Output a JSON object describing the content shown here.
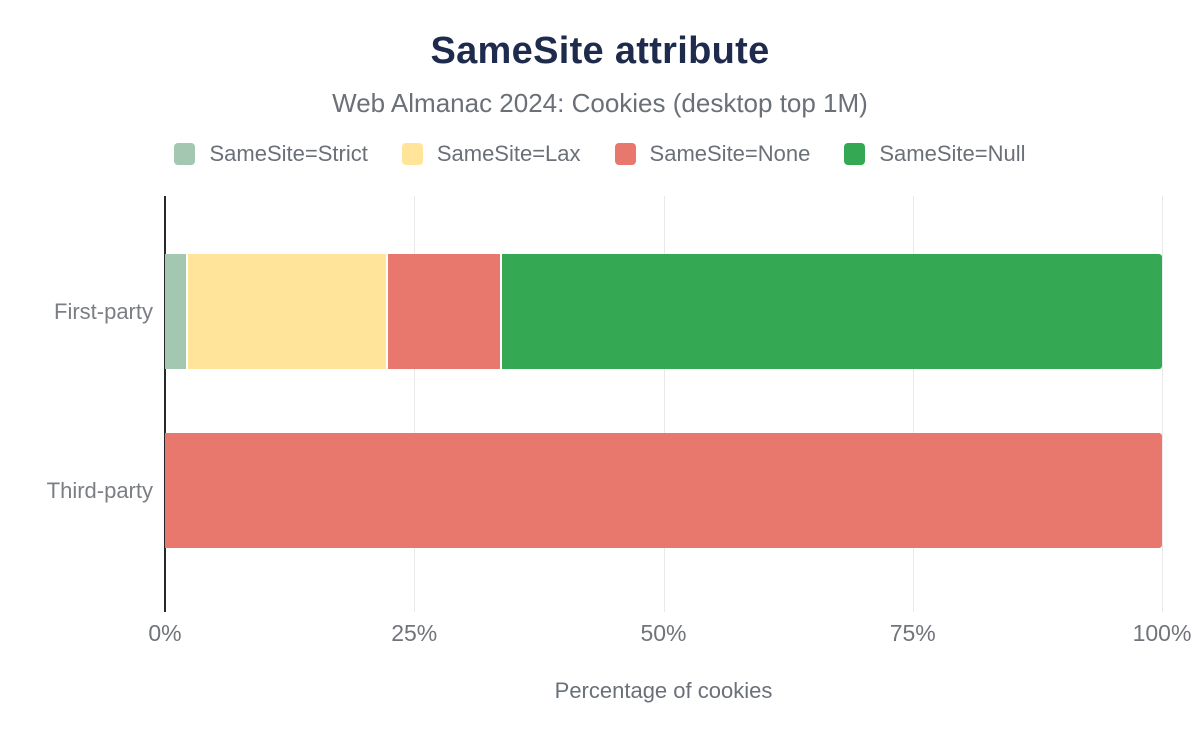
{
  "header": {
    "title": "SameSite attribute",
    "subtitle": "Web Almanac 2024: Cookies (desktop top 1M)"
  },
  "colors": {
    "title_text": "#1f2b4d",
    "muted_text": "#6b7078",
    "axis_line": "#26282b",
    "gridline": "#e9e9e9"
  },
  "chart_data": {
    "type": "bar",
    "orientation": "horizontal",
    "stacked": true,
    "title": "SameSite attribute",
    "subtitle": "Web Almanac 2024: Cookies (desktop top 1M)",
    "categories": [
      "First-party",
      "Third-party"
    ],
    "series": [
      {
        "name": "SameSite=Strict",
        "color": "#a4c7b2",
        "values": [
          2.1,
          0
        ]
      },
      {
        "name": "SameSite=Lax",
        "color": "#ffe49a",
        "values": [
          20.0,
          0
        ]
      },
      {
        "name": "SameSite=None",
        "color": "#e8786e",
        "values": [
          11.3,
          100
        ]
      },
      {
        "name": "SameSite=Null",
        "color": "#35a853",
        "values": [
          66.6,
          0
        ]
      }
    ],
    "xlabel": "Percentage of cookies",
    "ylabel": "",
    "xlim": [
      0,
      100
    ],
    "xticks": [
      "0%",
      "25%",
      "50%",
      "75%",
      "100%"
    ],
    "xtick_values": [
      0,
      25,
      50,
      75,
      100
    ],
    "grid": "vertical",
    "legend_position": "top"
  }
}
